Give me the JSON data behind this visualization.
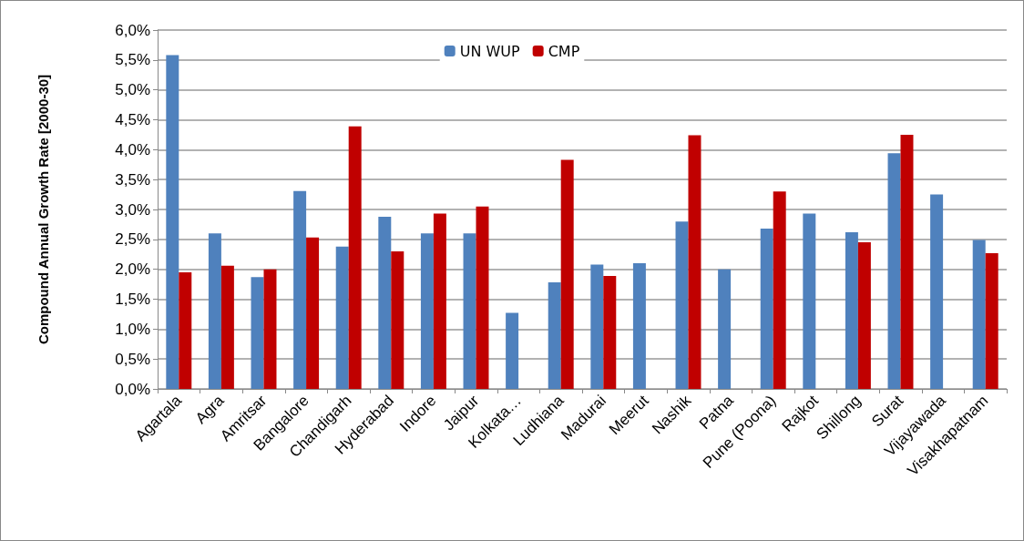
{
  "chart_data": {
    "type": "bar",
    "ylabel": "Compound Annual Growth Rate [2000-30]",
    "categories": [
      "Agartala",
      "Agra",
      "Amritsar",
      "Bangalore",
      "Chandigarh",
      "Hyderabad",
      "Indore",
      "Jaipur",
      "Kolkata…",
      "Ludhiana",
      "Madurai",
      "Meerut",
      "Nashik",
      "Patna",
      "Pune (Poona)",
      "Rajkot",
      "Shillong",
      "Surat",
      "Vijayawada",
      "Visakhapatnam"
    ],
    "series": [
      {
        "name": "UN WUP",
        "color": "#4f81bd",
        "values": [
          5.58,
          2.6,
          1.87,
          3.31,
          2.38,
          2.88,
          2.6,
          2.6,
          1.27,
          1.78,
          2.08,
          2.1,
          2.8,
          2.0,
          2.68,
          2.93,
          2.62,
          3.94,
          3.25,
          2.49
        ]
      },
      {
        "name": "CMP",
        "color": "#c00000",
        "values": [
          1.95,
          2.06,
          2.0,
          2.53,
          4.39,
          2.3,
          2.93,
          3.05,
          null,
          3.83,
          1.89,
          null,
          4.24,
          null,
          3.3,
          null,
          2.45,
          4.25,
          null,
          2.27
        ]
      }
    ],
    "ylim": [
      0,
      6
    ],
    "yticks": [
      {
        "value": 0,
        "label": "0,0%"
      },
      {
        "value": 0.5,
        "label": "0,5%"
      },
      {
        "value": 1,
        "label": "1,0%"
      },
      {
        "value": 1.5,
        "label": "1,5%"
      },
      {
        "value": 2,
        "label": "2,0%"
      },
      {
        "value": 2.5,
        "label": "2,5%"
      },
      {
        "value": 3,
        "label": "3,0%"
      },
      {
        "value": 3.5,
        "label": "3,5%"
      },
      {
        "value": 4,
        "label": "4,0%"
      },
      {
        "value": 4.5,
        "label": "4,5%"
      },
      {
        "value": 5,
        "label": "5,0%"
      },
      {
        "value": 5.5,
        "label": "5,5%"
      },
      {
        "value": 6,
        "label": "6,0%"
      }
    ],
    "grid": true,
    "legend": "top"
  }
}
